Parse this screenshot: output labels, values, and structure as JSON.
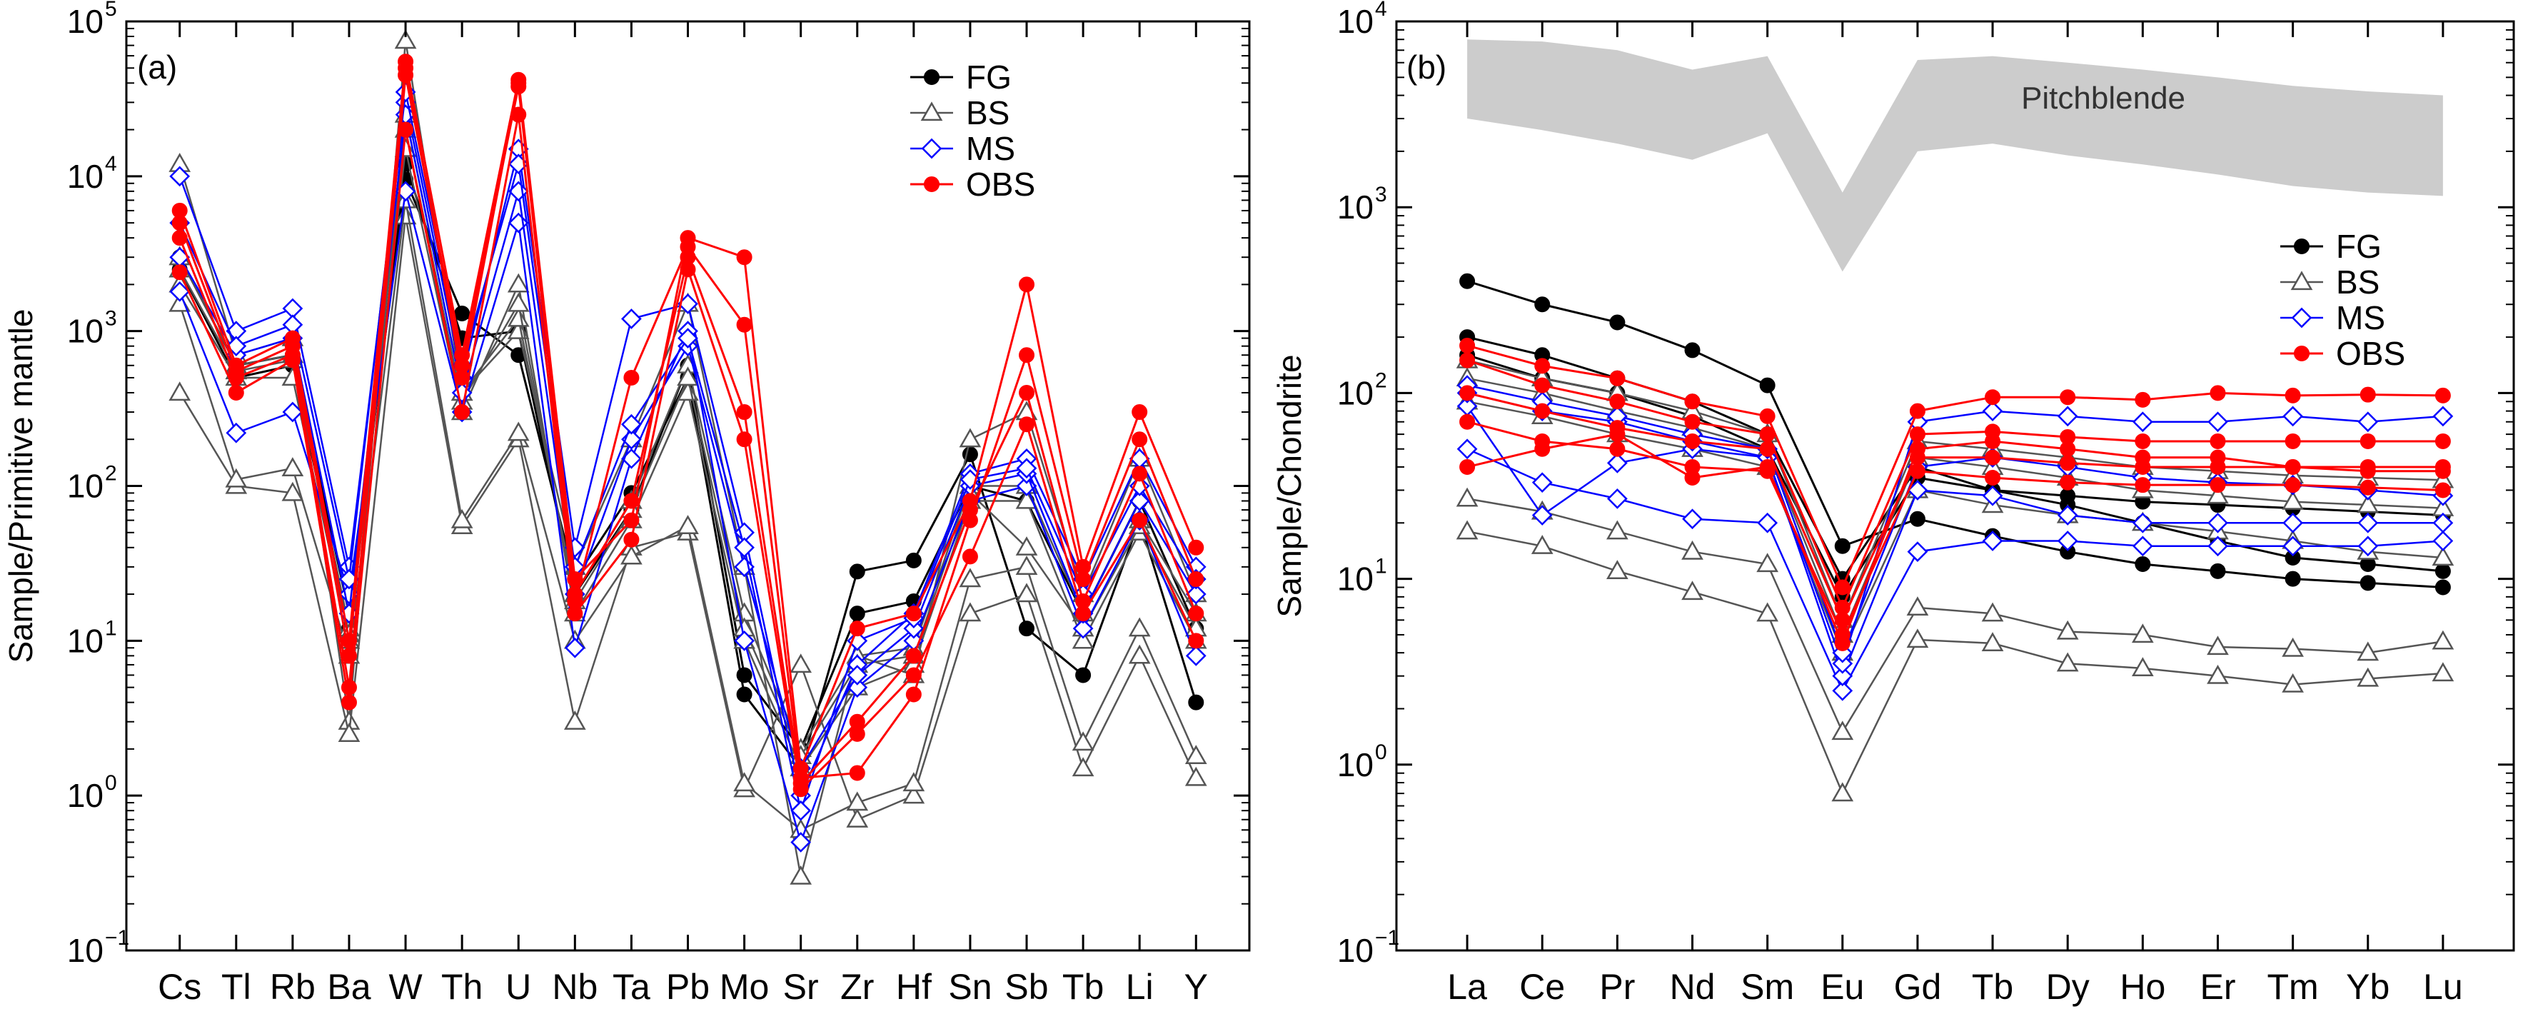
{
  "chart_data": [
    {
      "type": "line",
      "panel_label": "(a)",
      "ylabel": "Sample/Primitive mantle",
      "xlabel": "",
      "yscale": "log",
      "ylim": [
        0.1,
        100000
      ],
      "y_ticks": [
        {
          "value": 0.1,
          "base": "10",
          "exp": "−1"
        },
        {
          "value": 1,
          "base": "10",
          "exp": "0"
        },
        {
          "value": 10,
          "base": "10",
          "exp": "1"
        },
        {
          "value": 100,
          "base": "10",
          "exp": "2"
        },
        {
          "value": 1000,
          "base": "10",
          "exp": "3"
        },
        {
          "value": 10000,
          "base": "10",
          "exp": "4"
        },
        {
          "value": 100000,
          "base": "10",
          "exp": "5"
        }
      ],
      "categories": [
        "Cs",
        "Tl",
        "Rb",
        "Ba",
        "W",
        "Th",
        "U",
        "Nb",
        "Ta",
        "Pb",
        "Mo",
        "Sr",
        "Zr",
        "Hf",
        "Sn",
        "Sb",
        "Tb",
        "Li",
        "Y"
      ],
      "legend": [
        {
          "name": "FG",
          "marker": "circle",
          "color": "#000000"
        },
        {
          "name": "BS",
          "marker": "triangle",
          "color": "#555555"
        },
        {
          "name": "MS",
          "marker": "diamond",
          "color": "#0000ff"
        },
        {
          "name": "OBS",
          "marker": "circle",
          "color": "#ff0000"
        }
      ],
      "series": [
        {
          "group": "FG",
          "values": [
            3000,
            600,
            700,
            15,
            9500,
            1300,
            700,
            25,
            90,
            500,
            4.5,
            1.5,
            28,
            33,
            160,
            12,
            6,
            60,
            4
          ]
        },
        {
          "group": "FG",
          "values": [
            2500,
            500,
            600,
            12,
            12000,
            900,
            1000,
            20,
            70,
            600,
            6,
            2,
            15,
            18,
            100,
            80,
            15,
            80,
            12
          ]
        },
        {
          "group": "BS",
          "values": [
            12000,
            700,
            900,
            3,
            75000,
            400,
            1000,
            30,
            200,
            1500,
            30,
            0.3,
            8,
            6,
            200,
            300,
            20,
            150,
            20
          ]
        },
        {
          "group": "BS",
          "values": [
            400,
            100,
            90,
            2.5,
            5500,
            55,
            200,
            3,
            40,
            50,
            1.1,
            7,
            0.7,
            1,
            15,
            20,
            1.5,
            8,
            1.3
          ]
        },
        {
          "group": "BS",
          "values": [
            1500,
            110,
            130,
            8,
            7000,
            60,
            220,
            10,
            35,
            55,
            1.2,
            0.6,
            0.9,
            1.2,
            25,
            30,
            2.2,
            12,
            1.8
          ]
        },
        {
          "group": "BS",
          "values": [
            2000,
            500,
            500,
            10,
            15000,
            300,
            2000,
            15,
            60,
            400,
            10,
            1.5,
            5,
            7,
            80,
            80,
            10,
            50,
            10
          ]
        },
        {
          "group": "BS",
          "values": [
            3000,
            600,
            700,
            12,
            25000,
            400,
            1200,
            20,
            80,
            600,
            15,
            2,
            8,
            9,
            100,
            100,
            15,
            60,
            15
          ]
        },
        {
          "group": "BS",
          "values": [
            2500,
            550,
            650,
            11,
            20000,
            350,
            1500,
            18,
            70,
            500,
            12,
            1.8,
            7,
            8,
            90,
            40,
            12,
            55,
            12
          ]
        },
        {
          "group": "MS",
          "values": [
            10000,
            1000,
            1400,
            30,
            30000,
            500,
            15000,
            40,
            1200,
            1500,
            50,
            1,
            7,
            15,
            120,
            150,
            25,
            150,
            30
          ]
        },
        {
          "group": "MS",
          "values": [
            1800,
            220,
            300,
            20,
            8000,
            300,
            5000,
            9,
            150,
            1000,
            10,
            0.5,
            5,
            10,
            80,
            100,
            12,
            60,
            8
          ]
        },
        {
          "group": "MS",
          "values": [
            3000,
            700,
            900,
            15,
            25000,
            400,
            8000,
            20,
            200,
            800,
            30,
            1.5,
            6,
            12,
            100,
            120,
            15,
            80,
            20
          ]
        },
        {
          "group": "MS",
          "values": [
            5000,
            800,
            1100,
            25,
            35000,
            600,
            12000,
            30,
            250,
            900,
            40,
            0.8,
            10,
            14,
            110,
            130,
            20,
            100,
            25
          ]
        },
        {
          "group": "OBS",
          "values": [
            6000,
            600,
            900,
            10,
            55000,
            700,
            42000,
            25,
            60,
            4000,
            3000,
            1.5,
            12,
            15,
            80,
            2000,
            30,
            300,
            40
          ]
        },
        {
          "group": "OBS",
          "values": [
            4000,
            500,
            700,
            5,
            45000,
            600,
            38000,
            18,
            500,
            3500,
            1100,
            1.3,
            1.4,
            4.5,
            60,
            700,
            25,
            200,
            25
          ]
        },
        {
          "group": "OBS",
          "values": [
            5000,
            550,
            800,
            8,
            50000,
            500,
            40000,
            20,
            80,
            3000,
            300,
            1.2,
            3,
            8,
            70,
            400,
            18,
            120,
            15
          ]
        },
        {
          "group": "OBS",
          "values": [
            2400,
            400,
            650,
            4,
            20000,
            300,
            25000,
            15,
            45,
            2500,
            200,
            1.1,
            2.5,
            6,
            35,
            250,
            15,
            60,
            10
          ]
        }
      ]
    },
    {
      "type": "line",
      "panel_label": "(b)",
      "ylabel": "Sample/Chondrite",
      "xlabel": "",
      "yscale": "log",
      "ylim": [
        0.1,
        10000
      ],
      "y_ticks": [
        {
          "value": 0.1,
          "base": "10",
          "exp": "−1"
        },
        {
          "value": 1,
          "base": "10",
          "exp": "0"
        },
        {
          "value": 10,
          "base": "10",
          "exp": "1"
        },
        {
          "value": 100,
          "base": "10",
          "exp": "2"
        },
        {
          "value": 1000,
          "base": "10",
          "exp": "3"
        },
        {
          "value": 10000,
          "base": "10",
          "exp": "4"
        }
      ],
      "categories": [
        "La",
        "Ce",
        "Pr",
        "Nd",
        "Sm",
        "Eu",
        "Gd",
        "Tb",
        "Dy",
        "Ho",
        "Er",
        "Tm",
        "Yb",
        "Lu"
      ],
      "legend": [
        {
          "name": "FG",
          "marker": "circle",
          "color": "#000000"
        },
        {
          "name": "BS",
          "marker": "triangle",
          "color": "#555555"
        },
        {
          "name": "MS",
          "marker": "diamond",
          "color": "#0000ff"
        },
        {
          "name": "OBS",
          "marker": "circle",
          "color": "#ff0000"
        }
      ],
      "band": {
        "label": "Pitchblende",
        "upper": [
          8000,
          7800,
          7000,
          5500,
          6500,
          1200,
          6200,
          6500,
          6000,
          5500,
          5000,
          4500,
          4200,
          4000
        ],
        "lower": [
          3000,
          2600,
          2200,
          1800,
          2500,
          450,
          2000,
          2200,
          1900,
          1700,
          1500,
          1300,
          1200,
          1150
        ]
      },
      "series": [
        {
          "group": "FG",
          "values": [
            400,
            300,
            240,
            170,
            110,
            15,
            21,
            17,
            14,
            12,
            11,
            10,
            9.5,
            9
          ]
        },
        {
          "group": "FG",
          "values": [
            200,
            160,
            120,
            90,
            60,
            10,
            40,
            30,
            25,
            20,
            16,
            13,
            12,
            11
          ]
        },
        {
          "group": "FG",
          "values": [
            160,
            120,
            100,
            75,
            50,
            8,
            35,
            30,
            28,
            26,
            25,
            24,
            23,
            22
          ]
        },
        {
          "group": "BS",
          "values": [
            27,
            23,
            18,
            14,
            12,
            1.5,
            7,
            6.5,
            5.2,
            5,
            4.3,
            4.2,
            4,
            4.6
          ]
        },
        {
          "group": "BS",
          "values": [
            18,
            15,
            11,
            8.5,
            6.5,
            0.7,
            4.7,
            4.5,
            3.5,
            3.3,
            3,
            2.7,
            2.9,
            3.1
          ]
        },
        {
          "group": "BS",
          "values": [
            90,
            75,
            60,
            50,
            40,
            4,
            30,
            25,
            22,
            20,
            18,
            16,
            14,
            13
          ]
        },
        {
          "group": "BS",
          "values": [
            120,
            100,
            80,
            65,
            50,
            5,
            45,
            40,
            35,
            30,
            28,
            26,
            25,
            24
          ]
        },
        {
          "group": "BS",
          "values": [
            150,
            120,
            100,
            80,
            60,
            6,
            55,
            50,
            45,
            40,
            38,
            36,
            35,
            34
          ]
        },
        {
          "group": "MS",
          "values": [
            50,
            33,
            27,
            21,
            20,
            2.5,
            14,
            16,
            16,
            15,
            15,
            15,
            15,
            16
          ]
        },
        {
          "group": "MS",
          "values": [
            85,
            22,
            42,
            50,
            45,
            3,
            30,
            28,
            22,
            20,
            20,
            20,
            20,
            20
          ]
        },
        {
          "group": "MS",
          "values": [
            100,
            80,
            70,
            55,
            45,
            3.5,
            70,
            80,
            75,
            70,
            70,
            75,
            70,
            75
          ]
        },
        {
          "group": "MS",
          "values": [
            110,
            90,
            75,
            60,
            50,
            4,
            40,
            45,
            40,
            35,
            33,
            32,
            30,
            28
          ]
        },
        {
          "group": "OBS",
          "values": [
            180,
            140,
            120,
            90,
            75,
            9,
            80,
            95,
            95,
            92,
            100,
            97,
            98,
            97
          ]
        },
        {
          "group": "OBS",
          "values": [
            150,
            110,
            90,
            70,
            60,
            7,
            60,
            62,
            58,
            55,
            55,
            55,
            55,
            55
          ]
        },
        {
          "group": "OBS",
          "values": [
            100,
            80,
            65,
            55,
            50,
            6,
            45,
            45,
            42,
            40,
            40,
            40,
            38,
            38
          ]
        },
        {
          "group": "OBS",
          "values": [
            70,
            55,
            50,
            40,
            38,
            5,
            38,
            35,
            33,
            32,
            32,
            32,
            31,
            30
          ]
        },
        {
          "group": "OBS",
          "values": [
            40,
            50,
            60,
            35,
            40,
            4.5,
            50,
            55,
            50,
            45,
            45,
            40,
            40,
            40
          ]
        }
      ]
    }
  ]
}
